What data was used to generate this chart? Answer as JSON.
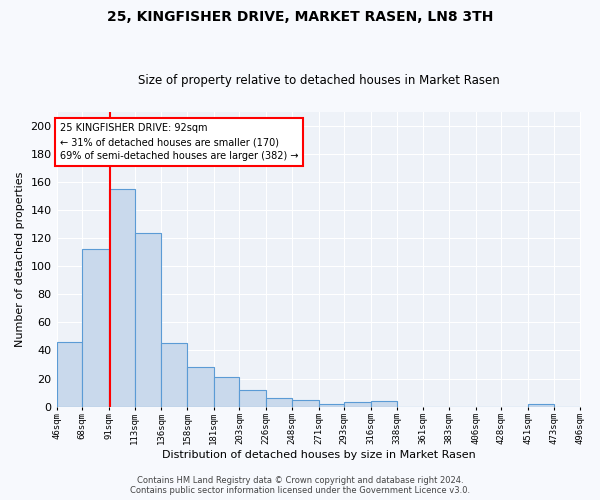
{
  "title": "25, KINGFISHER DRIVE, MARKET RASEN, LN8 3TH",
  "subtitle": "Size of property relative to detached houses in Market Rasen",
  "xlabel": "Distribution of detached houses by size in Market Rasen",
  "ylabel": "Number of detached properties",
  "bar_color": "#c9d9ec",
  "bar_edge_color": "#5b9bd5",
  "background_color": "#eef2f8",
  "grid_color": "#ffffff",
  "red_line_x": 92,
  "annotation_text": "25 KINGFISHER DRIVE: 92sqm\n← 31% of detached houses are smaller (170)\n69% of semi-detached houses are larger (382) →",
  "bin_edges": [
    46,
    68,
    91,
    113,
    136,
    158,
    181,
    203,
    226,
    248,
    271,
    293,
    316,
    338,
    361,
    383,
    406,
    428,
    451,
    473,
    496
  ],
  "bin_counts": [
    46,
    112,
    155,
    124,
    45,
    28,
    21,
    12,
    6,
    5,
    2,
    3,
    4,
    0,
    0,
    0,
    0,
    0,
    2,
    0
  ],
  "footnote": "Contains HM Land Registry data © Crown copyright and database right 2024.\nContains public sector information licensed under the Government Licence v3.0.",
  "ylim": [
    0,
    210
  ],
  "fig_bg": "#f7f9fd"
}
